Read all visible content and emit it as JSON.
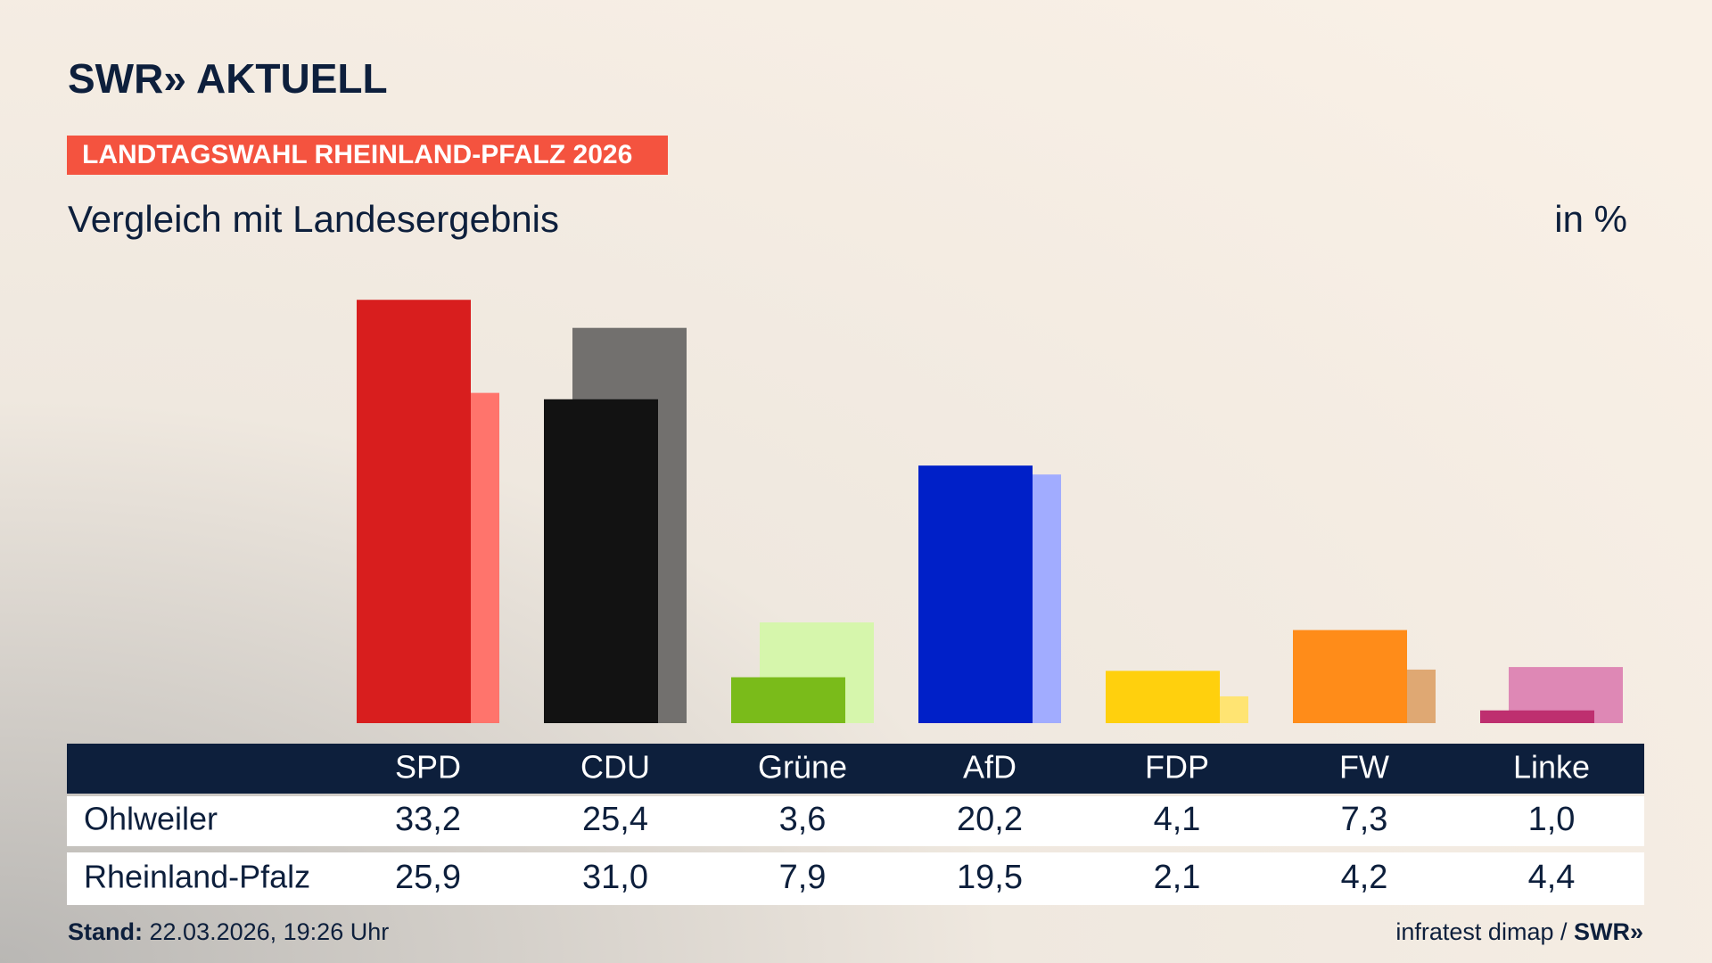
{
  "header": {
    "logo": "SWR» AKTUELL",
    "badge": "LANDTAGSWAHL RHEINLAND-PFALZ 2026"
  },
  "chart_data": {
    "type": "bar",
    "title": "Vergleich mit Landesergebnis",
    "unit_label": "in %",
    "categories": [
      "SPD",
      "CDU",
      "Grüne",
      "AfD",
      "FDP",
      "FW",
      "Linke"
    ],
    "series": [
      {
        "name": "Ohlweiler",
        "colors": [
          "#d81e1e",
          "#121212",
          "#7abb1a",
          "#0020c8",
          "#ffd00d",
          "#ff8c19",
          "#be2f6f"
        ],
        "values": [
          33.2,
          25.4,
          3.6,
          20.2,
          4.1,
          7.3,
          1.0
        ],
        "value_labels": [
          "33,2",
          "25,4",
          "3,6",
          "20,2",
          "4,1",
          "7,3",
          "1,0"
        ]
      },
      {
        "name": "Rheinland-Pfalz",
        "colors": [
          "#ff746c",
          "#72706e",
          "#d6f6ac",
          "#a1acff",
          "#ffe472",
          "#dfa873",
          "#de88b5"
        ],
        "values": [
          25.9,
          31.0,
          7.9,
          19.5,
          2.1,
          4.2,
          4.4
        ],
        "value_labels": [
          "25,9",
          "31,0",
          "7,9",
          "19,5",
          "2,1",
          "4,2",
          "4,4"
        ]
      }
    ]
  },
  "footer": {
    "stand_label": "Stand:",
    "stand": "22.03.2026, 19:26 Uhr",
    "source": "infratest dimap / ",
    "source_brand": "SWR»"
  }
}
